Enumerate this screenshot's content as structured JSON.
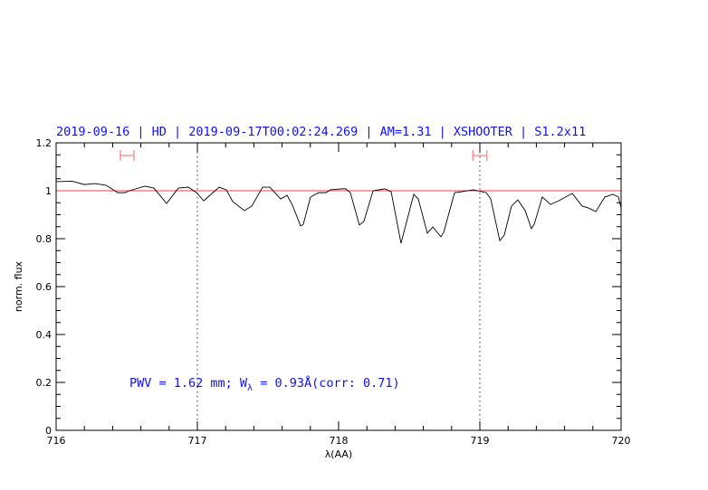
{
  "chart_data": {
    "type": "line",
    "title": "2019-09-16 | HD | 2019-09-17T00:02:24.269 | AM=1.31 | XSHOOTER | S1.2x11",
    "xlabel": "λ(AA)",
    "ylabel": "norm. flux",
    "xlim": [
      716,
      720
    ],
    "ylim": [
      0,
      1.2
    ],
    "x_ticks": [
      "716",
      "717",
      "718",
      "719",
      "720"
    ],
    "y_ticks": [
      "0",
      "0.2",
      "0.4",
      "0.6",
      "0.8",
      "1",
      "1.2"
    ],
    "grid": false,
    "annotation": {
      "prefix": "PWV = 1.62 mm; W",
      "subscript": "λ",
      "suffix": " = 0.93Å(corr: 0.71)"
    },
    "reference_line": {
      "y": 1.0,
      "color": "#ff4040"
    },
    "vertical_markers": [
      717,
      719
    ],
    "intervals": [
      {
        "x": [
          716.455,
          716.551
        ],
        "y": 1.147,
        "color": "#ff6060"
      },
      {
        "x": [
          718.95,
          719.05
        ],
        "y": 1.147,
        "color": "#ff6060"
      }
    ],
    "colors": {
      "title": "#1010ff",
      "spectrum": "#000000"
    },
    "series": [
      {
        "x": [
          716.0,
          716.115,
          716.199,
          716.276,
          716.353,
          716.436,
          716.487,
          716.519,
          716.628,
          716.692,
          716.782,
          716.865,
          716.936,
          716.994,
          717.045,
          717.154,
          717.205,
          717.25,
          717.333,
          717.385,
          717.462,
          717.513,
          717.59,
          717.635,
          717.673,
          717.731,
          717.75,
          717.801,
          717.859,
          717.91,
          717.942,
          718.026,
          718.051,
          718.083,
          718.147,
          718.179,
          718.244,
          718.327,
          718.372,
          718.442,
          718.532,
          718.564,
          718.628,
          718.667,
          718.724,
          718.744,
          718.821,
          718.872,
          718.955,
          719.045,
          719.077,
          719.141,
          719.173,
          719.224,
          719.269,
          719.321,
          719.365,
          719.385,
          719.442,
          719.5,
          719.558,
          719.654,
          719.724,
          719.769,
          719.821,
          719.885,
          719.942,
          719.981,
          720.0
        ],
        "y": [
          1.038,
          1.04,
          1.026,
          1.03,
          1.023,
          0.992,
          0.992,
          1.0,
          1.019,
          1.011,
          0.947,
          1.011,
          1.015,
          0.992,
          0.958,
          1.015,
          1.004,
          0.955,
          0.917,
          0.936,
          1.015,
          1.015,
          0.966,
          0.981,
          0.94,
          0.853,
          0.86,
          0.974,
          0.992,
          0.992,
          1.004,
          1.008,
          1.008,
          0.992,
          0.857,
          0.872,
          1.0,
          1.008,
          0.996,
          0.781,
          0.985,
          0.966,
          0.823,
          0.849,
          0.808,
          0.826,
          0.992,
          0.996,
          1.004,
          0.992,
          0.966,
          0.792,
          0.815,
          0.936,
          0.962,
          0.917,
          0.842,
          0.86,
          0.974,
          0.943,
          0.958,
          0.989,
          0.936,
          0.928,
          0.913,
          0.974,
          0.985,
          0.974,
          0.928
        ]
      }
    ]
  }
}
